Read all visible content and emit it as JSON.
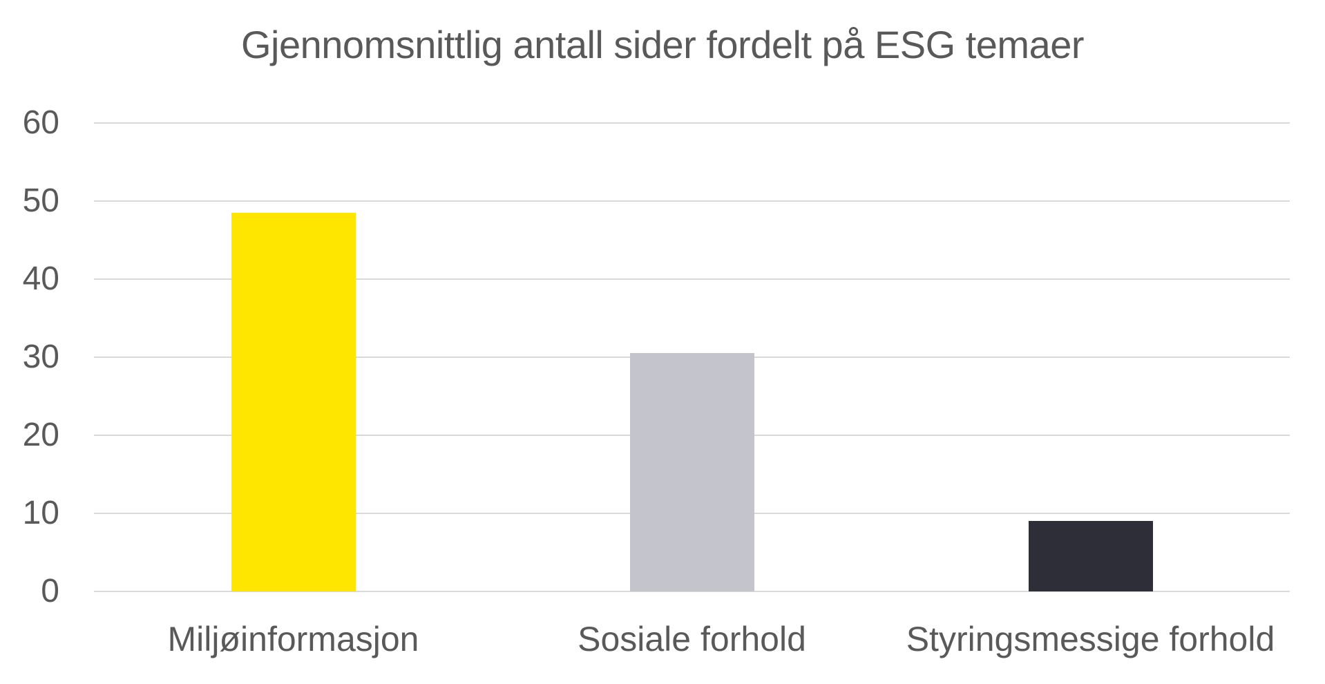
{
  "chart_data": {
    "type": "bar",
    "title": "Gjennomsnittlig antall sider fordelt på ESG temaer",
    "categories": [
      "Miljøinformasjon",
      "Sosiale forhold",
      "Styringsmessige forhold"
    ],
    "values": [
      48.5,
      30.5,
      9
    ],
    "colors": [
      "#FFE600",
      "#C4C4CD",
      "#2E2E38"
    ],
    "xlabel": "",
    "ylabel": "",
    "ylim": [
      0,
      60
    ],
    "yticks": [
      0,
      10,
      20,
      30,
      40,
      50,
      60
    ],
    "grid": true,
    "legend": false,
    "legend_position": "none",
    "text_color": "#595959",
    "gridline_color": "#D9D9D9",
    "background_color": "#FFFFFF"
  }
}
